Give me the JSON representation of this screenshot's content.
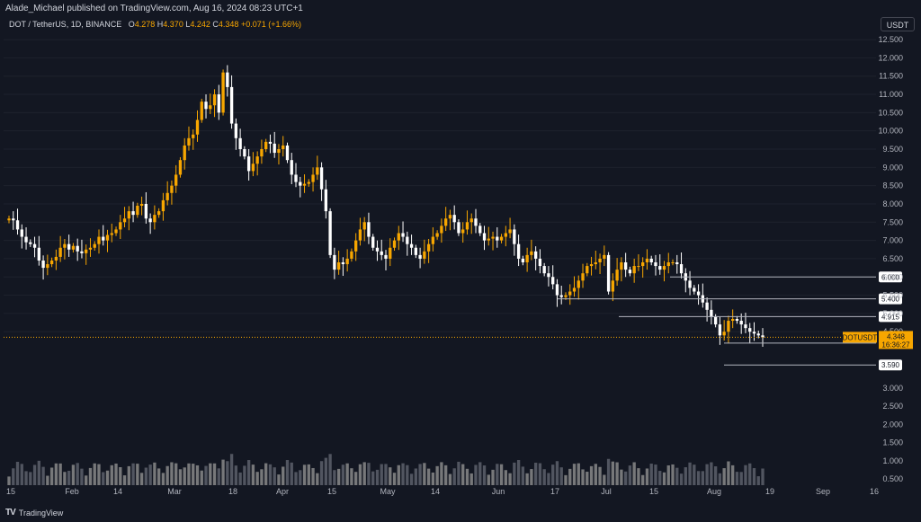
{
  "header": {
    "publisher": "Alade_Michael published on TradingView.com, Aug 16, 2024 08:23 UTC+1",
    "symbol_line": "DOT / TetherUS, 1D, BINANCE",
    "open_label": "O",
    "open": "4.278",
    "high_label": "H",
    "high": "4.370",
    "low_label": "L",
    "low": "4.242",
    "close_label": "C",
    "close": "4.348",
    "change": "+0.071 (+1.66%)"
  },
  "currency": "USDT",
  "brand": "TradingView",
  "colors": {
    "background": "#131722",
    "up": "#f7a600",
    "down": "#ffffff",
    "grid": "#1e222d",
    "axis_text": "#b2b5be",
    "level_line": "#b2b5be",
    "price_tag": "#f7a600"
  },
  "chart_data": {
    "type": "candlestick",
    "symbol": "DOTUSDT",
    "price_axis_ticks": [
      "12.500",
      "12.000",
      "11.500",
      "11.000",
      "10.500",
      "10.000",
      "9.500",
      "9.000",
      "8.500",
      "8.000",
      "7.500",
      "7.000",
      "6.500",
      "6.000",
      "5.500",
      "5.000",
      "4.500"
    ],
    "volume_axis_ticks": [
      "3.000",
      "2.500",
      "2.000",
      "1.500",
      "1.000",
      "0.500"
    ],
    "x_axis_ticks": [
      "15",
      "Feb",
      "14",
      "Mar",
      "18",
      "Apr",
      "15",
      "May",
      "14",
      "Jun",
      "17",
      "Jul",
      "15",
      "Aug",
      "19",
      "Sep",
      "16"
    ],
    "ylim": [
      3.3,
      12.6
    ],
    "levels": [
      {
        "price": 6.0,
        "label": "6.000"
      },
      {
        "price": 5.4,
        "label": "5.400"
      },
      {
        "price": 4.915,
        "label": "4.915"
      },
      {
        "price": 4.19,
        "label": "4.190"
      },
      {
        "price": 3.59,
        "label": "3.590"
      }
    ],
    "last_price": {
      "symbol": "DOTUSDT",
      "price": "4.348",
      "countdown": "16:36:27"
    },
    "close_series": [
      7.6,
      7.55,
      7.3,
      7.1,
      6.95,
      6.9,
      6.8,
      6.45,
      6.25,
      6.35,
      6.45,
      6.55,
      6.8,
      6.9,
      6.75,
      6.85,
      6.7,
      6.65,
      6.75,
      6.8,
      6.9,
      7.1,
      7.0,
      7.15,
      7.2,
      7.3,
      7.5,
      7.6,
      7.8,
      7.7,
      7.95,
      8.0,
      7.6,
      7.5,
      7.7,
      7.8,
      8.1,
      8.3,
      8.5,
      8.8,
      9.2,
      9.6,
      9.8,
      9.9,
      10.3,
      10.8,
      10.6,
      10.7,
      11.0,
      10.5,
      11.6,
      11.2,
      10.2,
      9.8,
      9.5,
      9.3,
      8.9,
      9.1,
      9.3,
      9.5,
      9.7,
      9.65,
      9.4,
      9.5,
      9.6,
      9.2,
      8.8,
      8.6,
      8.5,
      8.55,
      8.6,
      8.8,
      9.0,
      8.4,
      7.8,
      6.6,
      6.2,
      6.4,
      6.35,
      6.5,
      6.7,
      7.0,
      7.3,
      7.5,
      7.1,
      6.8,
      6.7,
      6.6,
      6.5,
      6.8,
      7.0,
      7.2,
      7.1,
      6.9,
      6.8,
      6.6,
      6.5,
      6.7,
      6.9,
      7.1,
      7.2,
      7.4,
      7.6,
      7.7,
      7.5,
      7.2,
      7.3,
      7.5,
      7.6,
      7.4,
      7.2,
      7.0,
      7.05,
      7.1,
      7.0,
      7.1,
      7.2,
      7.3,
      6.9,
      6.5,
      6.4,
      6.6,
      6.7,
      6.5,
      6.3,
      6.1,
      6.0,
      5.8,
      5.5,
      5.45,
      5.5,
      5.6,
      5.7,
      5.9,
      6.1,
      6.3,
      6.35,
      6.4,
      6.5,
      6.6,
      5.6,
      5.9,
      6.2,
      6.4,
      6.2,
      6.1,
      6.3,
      6.3,
      6.4,
      6.5,
      6.4,
      6.3,
      6.2,
      6.3,
      6.4,
      6.4,
      6.35,
      6.1,
      5.9,
      5.7,
      5.6,
      5.5,
      5.3,
      5.1,
      4.9,
      4.7,
      4.4,
      4.5,
      4.8,
      4.85,
      4.8,
      4.7,
      4.6,
      4.5,
      4.45,
      4.4,
      4.348
    ]
  }
}
